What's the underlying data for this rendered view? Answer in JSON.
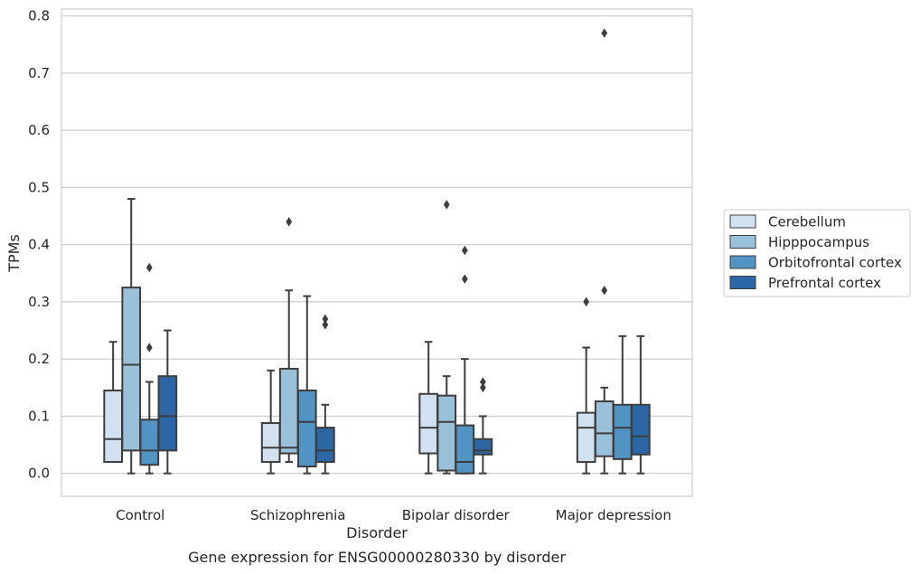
{
  "chart_data": {
    "type": "box",
    "title": "Gene expression for ENSG00000280330 by disorder",
    "xlabel": "Disorder",
    "ylabel": "TPMs",
    "ylim": [
      -0.04,
      0.812
    ],
    "yticks": [
      0.0,
      0.1,
      0.2,
      0.3,
      0.4,
      0.5,
      0.6,
      0.7,
      0.8
    ],
    "ytick_labels": [
      "0.0",
      "0.1",
      "0.2",
      "0.3",
      "0.4",
      "0.5",
      "0.6",
      "0.7",
      "0.8"
    ],
    "grid": "horizontal",
    "legend_position": "right",
    "categories": [
      "Control",
      "Schizophrenia",
      "Bipolar disorder",
      "Major depression"
    ],
    "series": [
      {
        "name": "Cerebellum",
        "color": "#d2e1ef",
        "boxes": [
          {
            "whisker_low": 0.02,
            "q1": 0.02,
            "median": 0.06,
            "q3": 0.145,
            "whisker_high": 0.23,
            "outliers": []
          },
          {
            "whisker_low": 0.0,
            "q1": 0.02,
            "median": 0.045,
            "q3": 0.088,
            "whisker_high": 0.18,
            "outliers": []
          },
          {
            "whisker_low": 0.0,
            "q1": 0.035,
            "median": 0.08,
            "q3": 0.139,
            "whisker_high": 0.23,
            "outliers": []
          },
          {
            "whisker_low": 0.0,
            "q1": 0.02,
            "median": 0.08,
            "q3": 0.106,
            "whisker_high": 0.22,
            "outliers": [
              0.3
            ]
          }
        ]
      },
      {
        "name": "Hipppocampus",
        "color": "#9ac1da",
        "boxes": [
          {
            "whisker_low": 0.0,
            "q1": 0.04,
            "median": 0.19,
            "q3": 0.325,
            "whisker_high": 0.48,
            "outliers": []
          },
          {
            "whisker_low": 0.02,
            "q1": 0.035,
            "median": 0.045,
            "q3": 0.183,
            "whisker_high": 0.32,
            "outliers": [
              0.44
            ]
          },
          {
            "whisker_low": 0.0,
            "q1": 0.005,
            "median": 0.09,
            "q3": 0.136,
            "whisker_high": 0.17,
            "outliers": [
              0.47
            ]
          },
          {
            "whisker_low": 0.0,
            "q1": 0.03,
            "median": 0.07,
            "q3": 0.126,
            "whisker_high": 0.15,
            "outliers": [
              0.32,
              0.77
            ]
          }
        ]
      },
      {
        "name": "Orbitofrontal cortex",
        "color": "#5193c2",
        "boxes": [
          {
            "whisker_low": 0.0,
            "q1": 0.015,
            "median": 0.04,
            "q3": 0.094,
            "whisker_high": 0.16,
            "outliers": [
              0.22,
              0.36
            ]
          },
          {
            "whisker_low": 0.0,
            "q1": 0.012,
            "median": 0.09,
            "q3": 0.145,
            "whisker_high": 0.31,
            "outliers": []
          },
          {
            "whisker_low": 0.0,
            "q1": 0.0,
            "median": 0.02,
            "q3": 0.084,
            "whisker_high": 0.2,
            "outliers": [
              0.34,
              0.39
            ]
          },
          {
            "whisker_low": 0.0,
            "q1": 0.025,
            "median": 0.08,
            "q3": 0.12,
            "whisker_high": 0.24,
            "outliers": []
          }
        ]
      },
      {
        "name": "Prefrontal cortex",
        "color": "#2b67a4",
        "boxes": [
          {
            "whisker_low": 0.0,
            "q1": 0.04,
            "median": 0.1,
            "q3": 0.17,
            "whisker_high": 0.25,
            "outliers": []
          },
          {
            "whisker_low": 0.0,
            "q1": 0.02,
            "median": 0.04,
            "q3": 0.08,
            "whisker_high": 0.12,
            "outliers": [
              0.26,
              0.27
            ]
          },
          {
            "whisker_low": 0.0,
            "q1": 0.033,
            "median": 0.04,
            "q3": 0.06,
            "whisker_high": 0.1,
            "outliers": [
              0.15,
              0.16
            ]
          },
          {
            "whisker_low": 0.0,
            "q1": 0.033,
            "median": 0.065,
            "q3": 0.12,
            "whisker_high": 0.24,
            "outliers": []
          }
        ]
      }
    ]
  }
}
